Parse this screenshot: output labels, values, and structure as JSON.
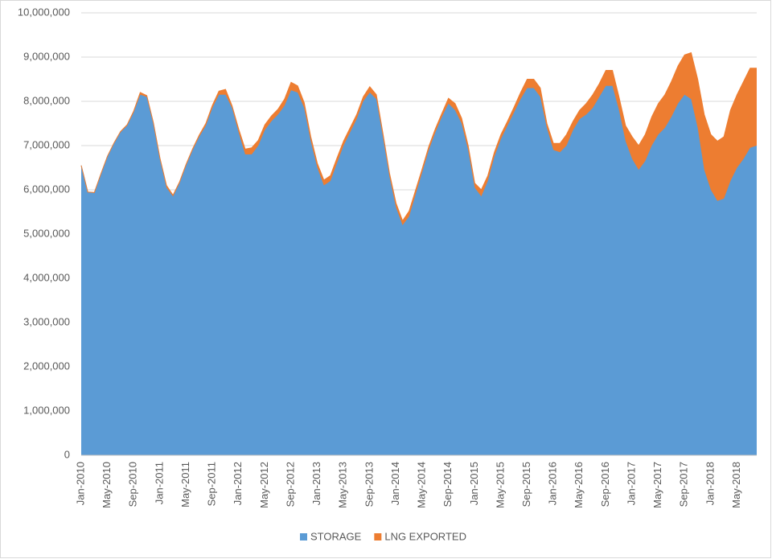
{
  "chart_data": {
    "type": "stacked_area",
    "categories": [
      "Jan-2010",
      null,
      null,
      null,
      "May-2010",
      null,
      null,
      null,
      "Sep-2010",
      null,
      null,
      null,
      "Jan-2011",
      null,
      null,
      null,
      "May-2011",
      null,
      null,
      null,
      "Sep-2011",
      null,
      null,
      null,
      "Jan-2012",
      null,
      null,
      null,
      "May-2012",
      null,
      null,
      null,
      "Sep-2012",
      null,
      null,
      null,
      "Jan-2013",
      null,
      null,
      null,
      "May-2013",
      null,
      null,
      null,
      "Sep-2013",
      null,
      null,
      null,
      "Jan-2014",
      null,
      null,
      null,
      "May-2014",
      null,
      null,
      null,
      "Sep-2014",
      null,
      null,
      null,
      "Jan-2015",
      null,
      null,
      null,
      "May-2015",
      null,
      null,
      null,
      "Sep-2015",
      null,
      null,
      null,
      "Jan-2016",
      null,
      null,
      null,
      "May-2016",
      null,
      null,
      null,
      "Sep-2016",
      null,
      null,
      null,
      "Jan-2017",
      null,
      null,
      null,
      "May-2017",
      null,
      null,
      null,
      "Sep-2017",
      null,
      null,
      null,
      "Jan-2018",
      null,
      null,
      null,
      "May-2018",
      null,
      null,
      null
    ],
    "series": [
      {
        "name": "STORAGE",
        "color": "#5b9bd5",
        "values": [
          6550000,
          5950000,
          5930000,
          6350000,
          6750000,
          7050000,
          7300000,
          7450000,
          7750000,
          8150000,
          8100000,
          7500000,
          6700000,
          6050000,
          5850000,
          6150000,
          6550000,
          6900000,
          7200000,
          7450000,
          7850000,
          8150000,
          8150000,
          7850000,
          7300000,
          6800000,
          6800000,
          7000000,
          7350000,
          7550000,
          7700000,
          7900000,
          8250000,
          8200000,
          7850000,
          7100000,
          6500000,
          6100000,
          6200000,
          6600000,
          7000000,
          7300000,
          7600000,
          8000000,
          8200000,
          8050000,
          7200000,
          6300000,
          5600000,
          5200000,
          5400000,
          5900000,
          6400000,
          6900000,
          7300000,
          7650000,
          7950000,
          7800000,
          7500000,
          6900000,
          6050000,
          5850000,
          6200000,
          6750000,
          7150000,
          7450000,
          7750000,
          8050000,
          8300000,
          8300000,
          8100000,
          7400000,
          6900000,
          6850000,
          7000000,
          7350000,
          7600000,
          7700000,
          7850000,
          8100000,
          8350000,
          8350000,
          7800000,
          7100000,
          6700000,
          6450000,
          6650000,
          7000000,
          7250000,
          7400000,
          7650000,
          7950000,
          8150000,
          8050000,
          7400000,
          6450000,
          6000000,
          5750000,
          5800000,
          6200000,
          6500000,
          6700000,
          6950000,
          7000000
        ]
      },
      {
        "name": "LNG EXPORTED",
        "color": "#ed7d31",
        "values": [
          0,
          0,
          10000,
          10000,
          10000,
          10000,
          20000,
          20000,
          30000,
          50000,
          30000,
          20000,
          20000,
          50000,
          30000,
          30000,
          30000,
          30000,
          40000,
          50000,
          60000,
          80000,
          120000,
          50000,
          80000,
          120000,
          150000,
          120000,
          120000,
          120000,
          120000,
          150000,
          180000,
          150000,
          120000,
          100000,
          100000,
          120000,
          120000,
          120000,
          100000,
          100000,
          100000,
          100000,
          130000,
          100000,
          80000,
          80000,
          100000,
          100000,
          120000,
          100000,
          80000,
          80000,
          80000,
          80000,
          120000,
          150000,
          120000,
          100000,
          100000,
          150000,
          120000,
          100000,
          100000,
          100000,
          120000,
          150000,
          200000,
          200000,
          200000,
          100000,
          150000,
          200000,
          250000,
          200000,
          200000,
          250000,
          300000,
          300000,
          350000,
          350000,
          300000,
          350000,
          500000,
          550000,
          600000,
          650000,
          700000,
          750000,
          800000,
          850000,
          900000,
          1050000,
          1100000,
          1250000,
          1250000,
          1350000,
          1400000,
          1600000,
          1650000,
          1750000,
          1800000,
          1750000
        ]
      }
    ],
    "ylim": [
      0,
      10000000
    ],
    "yticks": [
      0,
      {
        "value": 1000000,
        "label": "1,000,000"
      },
      {
        "value": 2000000,
        "label": "2,000,000"
      },
      {
        "value": 3000000,
        "label": "3,000,000"
      },
      {
        "value": 4000000,
        "label": "4,000,000"
      },
      {
        "value": 5000000,
        "label": "5,000,000"
      },
      {
        "value": 6000000,
        "label": "6,000,000"
      },
      {
        "value": 7000000,
        "label": "7,000,000"
      },
      {
        "value": 8000000,
        "label": "8,000,000"
      },
      {
        "value": 9000000,
        "label": "9,000,000"
      },
      {
        "value": 10000000,
        "label": "10,000,000"
      }
    ],
    "grid": true,
    "legend": "bottom"
  }
}
